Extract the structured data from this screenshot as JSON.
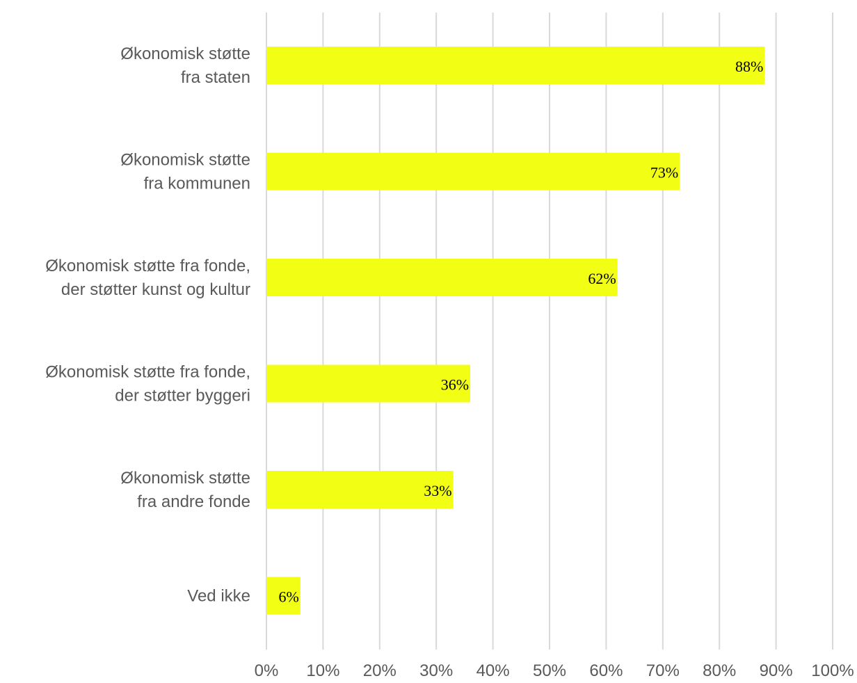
{
  "chart_data": {
    "type": "bar",
    "orientation": "horizontal",
    "categories": [
      [
        "Økonomisk støtte",
        "fra staten"
      ],
      [
        "Økonomisk støtte",
        "fra kommunen"
      ],
      [
        "Økonomisk støtte fra fonde,",
        "der støtter kunst og kultur"
      ],
      [
        "Økonomisk støtte fra fonde,",
        "der støtter byggeri"
      ],
      [
        "Økonomisk støtte",
        "fra andre fonde"
      ],
      [
        "Ved ikke"
      ]
    ],
    "values": [
      88,
      73,
      62,
      36,
      33,
      6
    ],
    "data_labels": [
      "88%",
      "73%",
      "62%",
      "36%",
      "33%",
      "6%"
    ],
    "xlim": [
      0,
      100
    ],
    "x_ticks": [
      0,
      10,
      20,
      30,
      40,
      50,
      60,
      70,
      80,
      90,
      100
    ],
    "x_tick_labels": [
      "0%",
      "10%",
      "20%",
      "30%",
      "40%",
      "50%",
      "60%",
      "70%",
      "80%",
      "90%",
      "100%"
    ],
    "title": "",
    "xlabel": "",
    "ylabel": "",
    "grid": "vertical",
    "legend": "none",
    "colors": {
      "bar": "#f2ff14",
      "grid": "#d9d9d9",
      "text": "#595959",
      "data_label": "#000000"
    }
  }
}
